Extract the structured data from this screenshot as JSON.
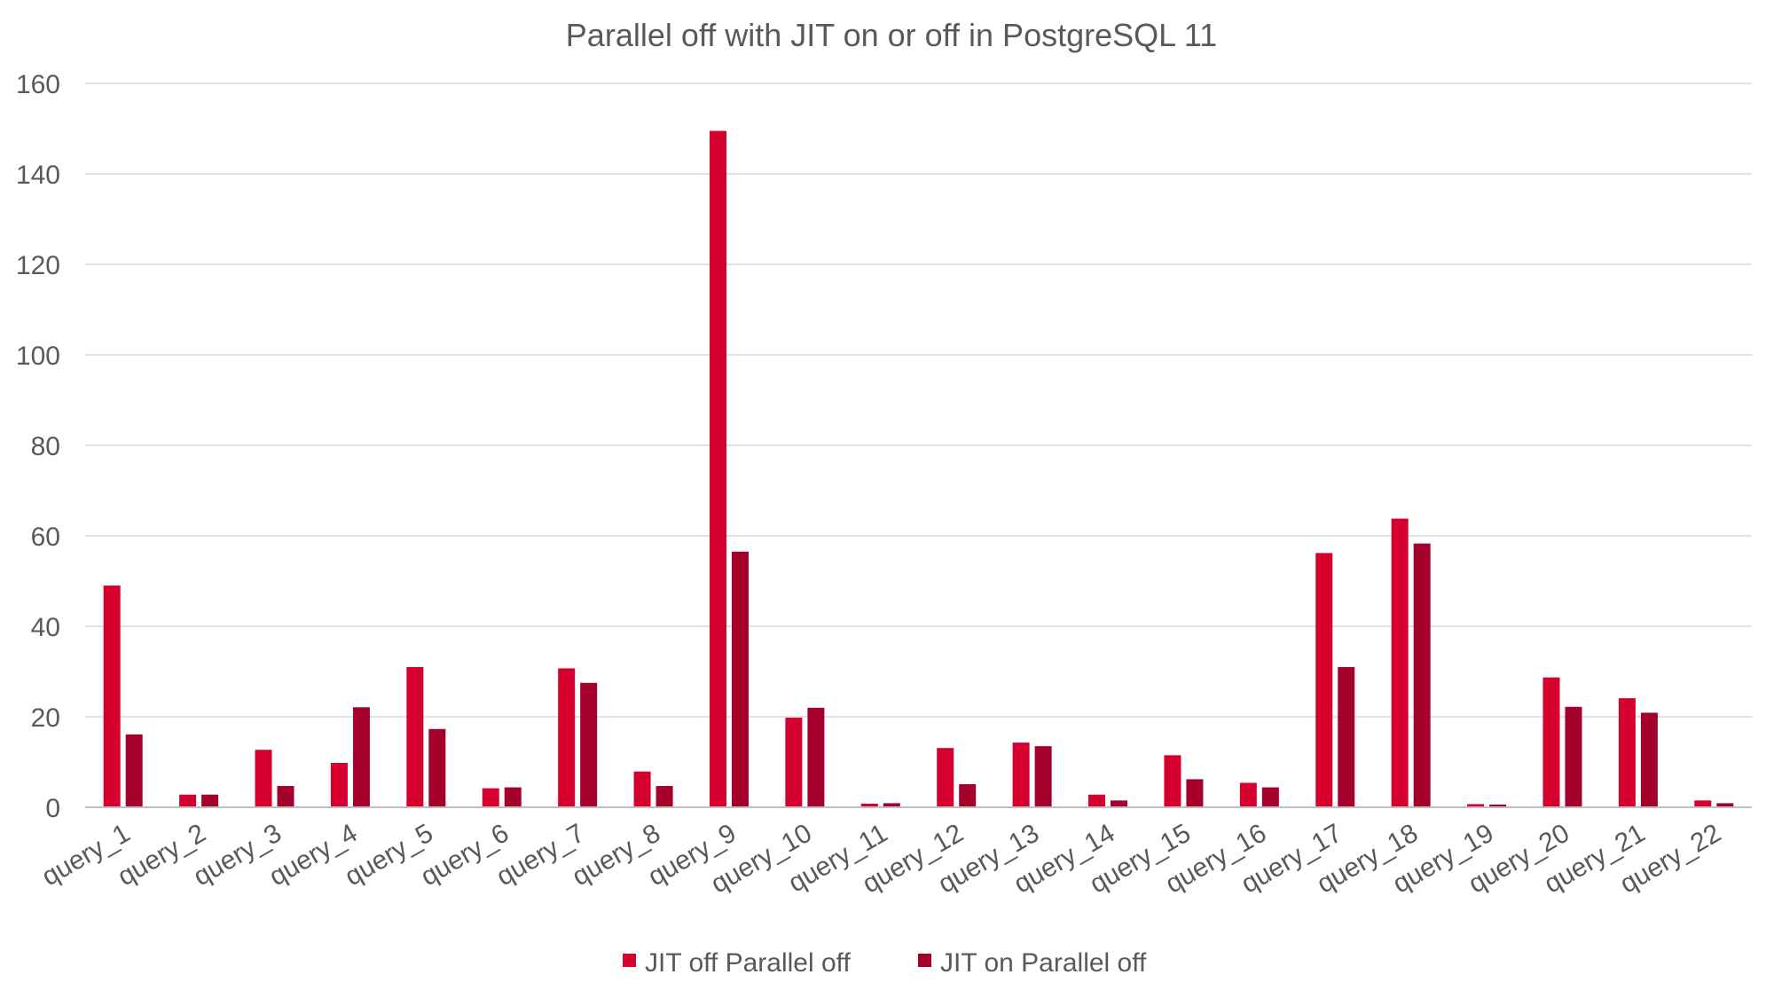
{
  "chart_data": {
    "type": "bar",
    "title": "Parallel off with JIT on or off in PostgreSQL 11",
    "xlabel": "",
    "ylabel": "",
    "ylim": [
      0,
      160
    ],
    "yticks": [
      0,
      20,
      40,
      60,
      80,
      100,
      120,
      140,
      160
    ],
    "grid": true,
    "legend_position": "bottom",
    "categories": [
      "query_1",
      "query_2",
      "query_3",
      "query_4",
      "query_5",
      "query_6",
      "query_7",
      "query_8",
      "query_9",
      "query_10",
      "query_11",
      "query_12",
      "query_13",
      "query_14",
      "query_15",
      "query_16",
      "query_17",
      "query_18",
      "query_19",
      "query_20",
      "query_21",
      "query_22"
    ],
    "series": [
      {
        "name": "JIT off Parallel off",
        "color": "#D6002F",
        "values": [
          49,
          2.8,
          12.7,
          9.8,
          31,
          4.2,
          30.7,
          7.9,
          149.5,
          19.8,
          0.8,
          13.1,
          14.3,
          2.8,
          11.5,
          5.4,
          56.2,
          63.8,
          0.7,
          28.7,
          24.1,
          1.5
        ]
      },
      {
        "name": "JIT on Parallel off",
        "color": "#A5002B",
        "values": [
          16.1,
          2.8,
          4.7,
          22.1,
          17.3,
          4.4,
          27.5,
          4.7,
          56.5,
          22,
          0.9,
          5.1,
          13.5,
          1.5,
          6.2,
          4.4,
          31,
          58.3,
          0.6,
          22.2,
          20.9,
          0.9
        ]
      }
    ]
  }
}
